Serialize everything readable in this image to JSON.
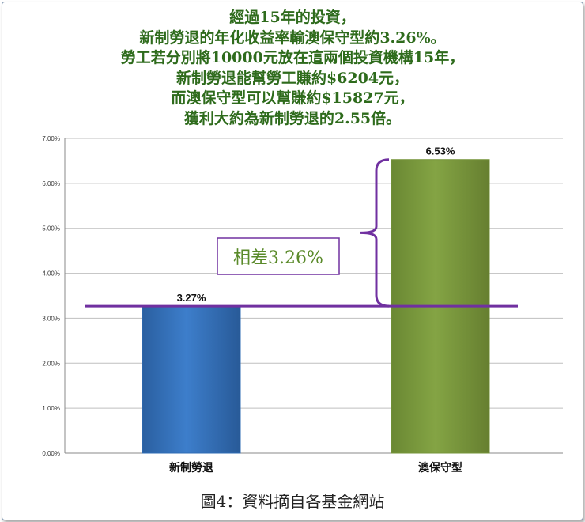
{
  "title_lines": [
    "經過15年的投資，",
    "新制勞退的年化收益率輸澳保守型約3.26%。",
    "勞工若分別將10000元放在這兩個投資機構15年，",
    "新制勞退能幫勞工賺約$6204元，",
    "而澳保守型可以幫賺約$15827元，",
    "獲利大約為新制勞退的2.55倍。"
  ],
  "caption": "圖4：資料摘自各基金網站",
  "annotation": "相差3.26%",
  "colors": {
    "title": "#2e6b1c",
    "bar_1": "#2f6cb5",
    "bar_2": "#76953a",
    "annotation": "#7030a0"
  },
  "chart_data": {
    "type": "bar",
    "categories": [
      "新制勞退",
      "澳保守型"
    ],
    "values": [
      3.27,
      6.53
    ],
    "data_labels": [
      "3.27%",
      "6.53%"
    ],
    "yticks": [
      "0.00%",
      "1.00%",
      "2.00%",
      "3.00%",
      "4.00%",
      "5.00%",
      "6.00%",
      "7.00%"
    ],
    "ylim": [
      0,
      7
    ],
    "grid": true,
    "reference_line": 3.27,
    "difference": 3.26
  }
}
